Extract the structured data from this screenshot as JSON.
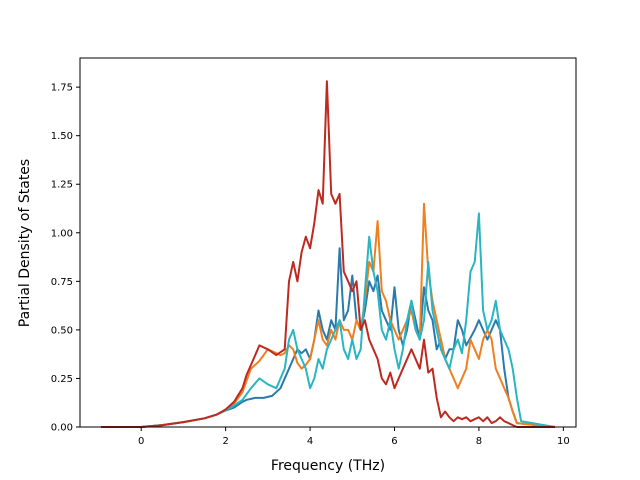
{
  "chart_data": {
    "type": "line",
    "xlabel": "Frequency (THz)",
    "ylabel": "Partial Density of States",
    "xlim": [
      -1.45,
      10.3
    ],
    "ylim": [
      0,
      1.9
    ],
    "xticks": [
      "0",
      "2",
      "4",
      "6",
      "8",
      "10"
    ],
    "xtick_values": [
      0,
      2,
      4,
      6,
      8,
      10
    ],
    "yticks": [
      "0.00",
      "0.25",
      "0.50",
      "0.75",
      "1.00",
      "1.25",
      "1.50",
      "1.75"
    ],
    "ytick_values": [
      0,
      0.25,
      0.5,
      0.75,
      1.0,
      1.25,
      1.5,
      1.75
    ],
    "grid": false,
    "series": [
      {
        "color": "#2a7aac",
        "x": [
          -0.95,
          0.0,
          0.5,
          1.0,
          1.5,
          1.8,
          2.0,
          2.2,
          2.4,
          2.5,
          2.7,
          2.9,
          3.1,
          3.3,
          3.5,
          3.6,
          3.7,
          3.8,
          3.9,
          4.0,
          4.1,
          4.2,
          4.3,
          4.4,
          4.5,
          4.6,
          4.7,
          4.8,
          4.9,
          5.0,
          5.1,
          5.2,
          5.3,
          5.4,
          5.5,
          5.6,
          5.7,
          5.8,
          5.9,
          6.0,
          6.1,
          6.2,
          6.3,
          6.4,
          6.5,
          6.6,
          6.7,
          6.8,
          6.9,
          7.0,
          7.1,
          7.2,
          7.3,
          7.4,
          7.5,
          7.6,
          7.7,
          7.8,
          7.9,
          8.0,
          8.1,
          8.2,
          8.3,
          8.4,
          8.5,
          8.6,
          8.7,
          8.8,
          8.9,
          9.8
        ],
        "y": [
          0.0,
          0.0,
          0.01,
          0.025,
          0.045,
          0.065,
          0.085,
          0.1,
          0.13,
          0.14,
          0.15,
          0.15,
          0.16,
          0.2,
          0.3,
          0.35,
          0.4,
          0.38,
          0.4,
          0.35,
          0.45,
          0.6,
          0.5,
          0.45,
          0.55,
          0.5,
          0.92,
          0.55,
          0.6,
          0.78,
          0.55,
          0.5,
          0.6,
          0.75,
          0.7,
          0.78,
          0.6,
          0.55,
          0.5,
          0.72,
          0.5,
          0.42,
          0.5,
          0.65,
          0.55,
          0.45,
          0.72,
          0.6,
          0.55,
          0.4,
          0.45,
          0.35,
          0.4,
          0.4,
          0.55,
          0.5,
          0.42,
          0.46,
          0.5,
          0.55,
          0.5,
          0.45,
          0.5,
          0.55,
          0.5,
          0.3,
          0.15,
          0.08,
          0.02,
          0.0
        ]
      },
      {
        "color": "#f07f1f",
        "x": [
          -0.95,
          0.0,
          0.5,
          1.0,
          1.5,
          1.8,
          2.0,
          2.2,
          2.4,
          2.5,
          2.6,
          2.8,
          3.0,
          3.2,
          3.3,
          3.4,
          3.5,
          3.6,
          3.7,
          3.8,
          3.9,
          4.0,
          4.1,
          4.2,
          4.3,
          4.4,
          4.5,
          4.6,
          4.7,
          4.8,
          4.9,
          5.0,
          5.1,
          5.2,
          5.3,
          5.4,
          5.5,
          5.6,
          5.7,
          5.8,
          5.9,
          6.0,
          6.1,
          6.2,
          6.3,
          6.4,
          6.5,
          6.6,
          6.7,
          6.8,
          6.9,
          7.0,
          7.1,
          7.2,
          7.3,
          7.4,
          7.5,
          7.6,
          7.7,
          7.8,
          7.9,
          8.0,
          8.1,
          8.2,
          8.3,
          8.4,
          8.5,
          8.6,
          8.7,
          8.8,
          8.9,
          9.8
        ],
        "y": [
          0.0,
          0.0,
          0.01,
          0.025,
          0.045,
          0.065,
          0.09,
          0.12,
          0.18,
          0.24,
          0.3,
          0.34,
          0.4,
          0.38,
          0.37,
          0.38,
          0.42,
          0.4,
          0.33,
          0.3,
          0.32,
          0.35,
          0.45,
          0.55,
          0.45,
          0.42,
          0.5,
          0.45,
          0.55,
          0.5,
          0.5,
          0.45,
          0.55,
          0.5,
          0.65,
          0.85,
          0.8,
          1.06,
          0.7,
          0.65,
          0.55,
          0.5,
          0.45,
          0.5,
          0.55,
          0.6,
          0.5,
          0.45,
          1.15,
          0.8,
          0.65,
          0.55,
          0.45,
          0.35,
          0.3,
          0.25,
          0.2,
          0.25,
          0.3,
          0.45,
          0.4,
          0.35,
          0.45,
          0.5,
          0.45,
          0.3,
          0.25,
          0.2,
          0.15,
          0.08,
          0.02,
          0.0
        ]
      },
      {
        "color": "#2ab5c3",
        "x": [
          -0.95,
          0.0,
          0.5,
          1.0,
          1.5,
          1.8,
          2.0,
          2.2,
          2.4,
          2.5,
          2.6,
          2.8,
          3.0,
          3.2,
          3.4,
          3.5,
          3.6,
          3.7,
          3.8,
          3.9,
          4.0,
          4.1,
          4.2,
          4.3,
          4.4,
          4.5,
          4.6,
          4.7,
          4.8,
          4.9,
          5.0,
          5.1,
          5.2,
          5.3,
          5.4,
          5.5,
          5.6,
          5.7,
          5.8,
          5.9,
          6.0,
          6.1,
          6.2,
          6.3,
          6.4,
          6.5,
          6.6,
          6.7,
          6.8,
          6.9,
          7.0,
          7.1,
          7.2,
          7.3,
          7.4,
          7.5,
          7.6,
          7.7,
          7.8,
          7.9,
          8.0,
          8.1,
          8.2,
          8.3,
          8.4,
          8.5,
          8.6,
          8.7,
          8.8,
          8.9,
          9.0,
          9.8
        ],
        "y": [
          0.0,
          0.0,
          0.01,
          0.025,
          0.045,
          0.065,
          0.085,
          0.11,
          0.14,
          0.17,
          0.2,
          0.25,
          0.22,
          0.2,
          0.3,
          0.45,
          0.5,
          0.4,
          0.35,
          0.3,
          0.2,
          0.25,
          0.35,
          0.3,
          0.4,
          0.45,
          0.5,
          0.55,
          0.4,
          0.35,
          0.45,
          0.35,
          0.4,
          0.7,
          0.98,
          0.8,
          0.7,
          0.5,
          0.45,
          0.55,
          0.4,
          0.3,
          0.4,
          0.55,
          0.65,
          0.5,
          0.45,
          0.55,
          0.85,
          0.6,
          0.5,
          0.4,
          0.35,
          0.3,
          0.4,
          0.45,
          0.38,
          0.55,
          0.8,
          0.85,
          1.1,
          0.6,
          0.5,
          0.55,
          0.65,
          0.5,
          0.45,
          0.4,
          0.3,
          0.15,
          0.03,
          0.0
        ]
      },
      {
        "color": "#be2a21",
        "x": [
          -0.95,
          0.0,
          0.5,
          1.0,
          1.5,
          1.8,
          2.0,
          2.2,
          2.4,
          2.5,
          2.6,
          2.8,
          3.0,
          3.2,
          3.4,
          3.5,
          3.6,
          3.7,
          3.8,
          3.9,
          4.0,
          4.1,
          4.2,
          4.3,
          4.4,
          4.5,
          4.6,
          4.7,
          4.8,
          4.9,
          5.0,
          5.1,
          5.2,
          5.3,
          5.4,
          5.5,
          5.6,
          5.7,
          5.8,
          5.9,
          6.0,
          6.1,
          6.2,
          6.3,
          6.4,
          6.5,
          6.6,
          6.7,
          6.8,
          6.9,
          7.0,
          7.1,
          7.2,
          7.3,
          7.4,
          7.5,
          7.6,
          7.7,
          7.8,
          7.9,
          8.0,
          8.1,
          8.2,
          8.3,
          8.4,
          8.5,
          8.6,
          8.7,
          8.8,
          8.9,
          9.8
        ],
        "y": [
          0.0,
          0.0,
          0.01,
          0.025,
          0.045,
          0.065,
          0.09,
          0.13,
          0.2,
          0.27,
          0.32,
          0.42,
          0.4,
          0.37,
          0.4,
          0.75,
          0.85,
          0.75,
          0.9,
          0.98,
          0.92,
          1.05,
          1.22,
          1.15,
          1.78,
          1.2,
          1.15,
          1.2,
          0.8,
          0.75,
          0.7,
          0.75,
          0.5,
          0.55,
          0.45,
          0.4,
          0.35,
          0.25,
          0.22,
          0.28,
          0.2,
          0.25,
          0.3,
          0.35,
          0.4,
          0.35,
          0.3,
          0.45,
          0.28,
          0.3,
          0.15,
          0.05,
          0.08,
          0.05,
          0.03,
          0.05,
          0.04,
          0.05,
          0.03,
          0.04,
          0.05,
          0.03,
          0.05,
          0.02,
          0.03,
          0.05,
          0.03,
          0.02,
          0.01,
          0.0,
          0.0
        ]
      }
    ]
  }
}
